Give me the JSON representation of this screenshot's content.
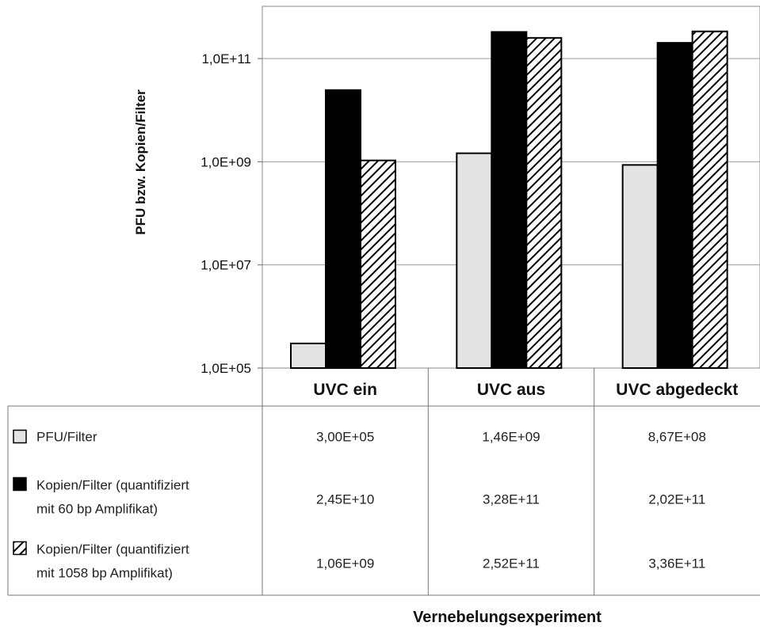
{
  "chart_data": {
    "type": "bar",
    "title": "",
    "xlabel": "Vernebelungsexperiment",
    "ylabel": "PFU bzw. Kopien/Filter",
    "yscale": "log",
    "ylim": [
      100000,
      1000000000000
    ],
    "yticks": [
      100000,
      10000000,
      1000000000,
      100000000000
    ],
    "ytick_labels": [
      "1,0E+05",
      "1,0E+07",
      "1,0E+09",
      "1,0E+11"
    ],
    "grid": true,
    "legend": "table-below",
    "categories": [
      "UVC ein",
      "UVC aus",
      "UVC abgedeckt"
    ],
    "series": [
      {
        "name": "PFU/Filter",
        "name_lines": [
          "PFU/Filter"
        ],
        "fill": "light-gray",
        "color": "#e3e3e3",
        "values": [
          300000,
          1460000000,
          867000000
        ],
        "labels": [
          "3,00E+05",
          "1,46E+09",
          "8,67E+08"
        ]
      },
      {
        "name": "Kopien/Filter (quantifiziert mit 60 bp Amplifikat)",
        "name_lines": [
          "Kopien/Filter (quantifiziert",
          "mit 60 bp Amplifikat)"
        ],
        "fill": "black",
        "color": "#000000",
        "values": [
          24500000000,
          328000000000,
          202000000000
        ],
        "labels": [
          "2,45E+10",
          "3,28E+11",
          "2,02E+11"
        ]
      },
      {
        "name": "Kopien/Filter (quantifiziert mit 1058 bp Amplifikat)",
        "name_lines": [
          "Kopien/Filter (quantifiziert",
          "mit 1058 bp Amplifikat)"
        ],
        "fill": "diagonal-hatch",
        "color": "#000000",
        "values": [
          1060000000,
          252000000000,
          336000000000
        ],
        "labels": [
          "1,06E+09",
          "2,52E+11",
          "3,36E+11"
        ]
      }
    ]
  }
}
